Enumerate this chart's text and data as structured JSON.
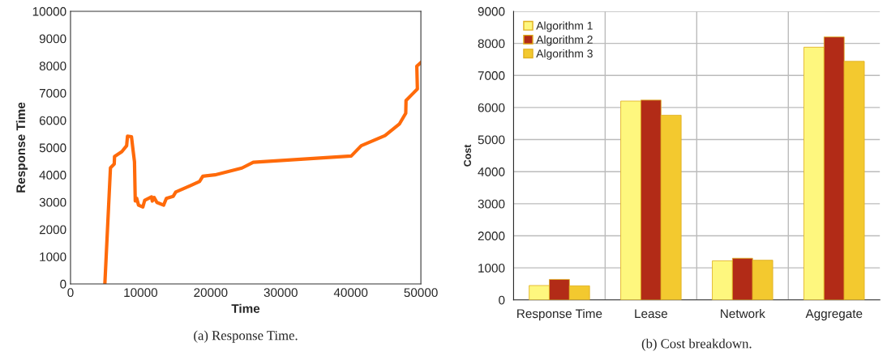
{
  "chart_data": [
    {
      "type": "line",
      "title": "(a) Response Time.",
      "xlabel": "Time",
      "ylabel": "Response Time",
      "xlim": [
        0,
        50000
      ],
      "xticks": [
        0,
        10000,
        20000,
        30000,
        40000,
        50000
      ],
      "ylim": [
        0,
        10000
      ],
      "yticks": [
        0,
        1000,
        2000,
        3000,
        4000,
        5000,
        6000,
        7000,
        8000,
        9000,
        10000
      ],
      "grid": false,
      "legend": false,
      "marker": "none",
      "line_style": "solid",
      "series": [
        {
          "color": "#ff6a0a",
          "x": [
            4900,
            5700,
            6240,
            6280,
            7320,
            8010,
            8130,
            8700,
            8940,
            9130,
            9240,
            9440,
            9710,
            10320,
            10590,
            11560,
            11670,
            11940,
            12330,
            13290,
            13680,
            14640,
            15020,
            17140,
            18410,
            18880,
            20610,
            24460,
            26080,
            40060,
            41490,
            44880,
            46920,
            47840,
            47880,
            49500,
            49420,
            50000
          ],
          "values": [
            0,
            4260,
            4400,
            4670,
            4850,
            5070,
            5420,
            5400,
            4870,
            4480,
            3040,
            3140,
            2890,
            2820,
            3070,
            3190,
            3040,
            3170,
            2990,
            2890,
            3140,
            3210,
            3370,
            3610,
            3760,
            3950,
            4000,
            4250,
            4460,
            4690,
            5070,
            5440,
            5860,
            6260,
            6730,
            7150,
            7990,
            8120
          ]
        }
      ]
    },
    {
      "type": "bar",
      "title": "(b) Cost breakdown.",
      "ylabel": "Cost",
      "categories": [
        "Response Time",
        "Lease",
        "Network",
        "Aggregate"
      ],
      "ylim": [
        0,
        9000
      ],
      "yticks": [
        0,
        1000,
        2000,
        3000,
        4000,
        5000,
        6000,
        7000,
        8000,
        9000
      ],
      "grid": true,
      "legend": "top left",
      "series": [
        {
          "name": "Algorithm 1",
          "color": "#fef77e",
          "values": [
            450,
            6200,
            1220,
            7880
          ]
        },
        {
          "name": "Algorithm 2",
          "color": "#b22b17",
          "values": [
            640,
            6230,
            1300,
            8200
          ]
        },
        {
          "name": "Algorithm 3",
          "color": "#f3c92f",
          "values": [
            440,
            5760,
            1240,
            7440
          ]
        }
      ]
    }
  ]
}
